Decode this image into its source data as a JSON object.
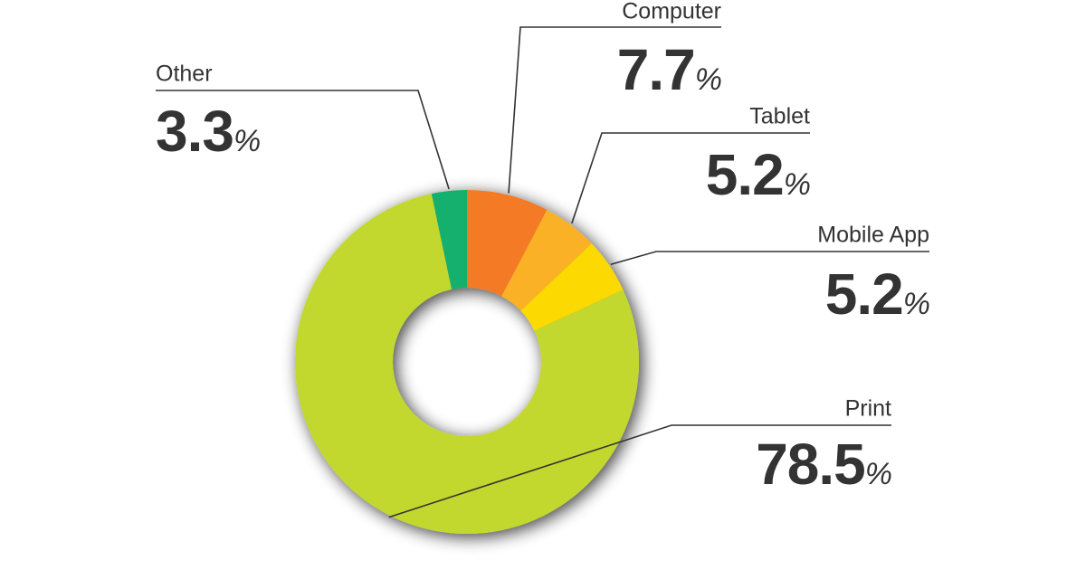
{
  "chart_data": {
    "type": "donut",
    "categories": [
      "Computer",
      "Tablet",
      "Mobile App",
      "Print",
      "Other"
    ],
    "values": [
      7.7,
      5.2,
      5.2,
      78.5,
      3.3
    ],
    "value_labels": [
      "7.7%",
      "5.2%",
      "5.2%",
      "78.5%",
      "3.3%"
    ],
    "colors": [
      "#f47a27",
      "#fbb127",
      "#fcd900",
      "#c2d82e",
      "#12b06e"
    ]
  }
}
